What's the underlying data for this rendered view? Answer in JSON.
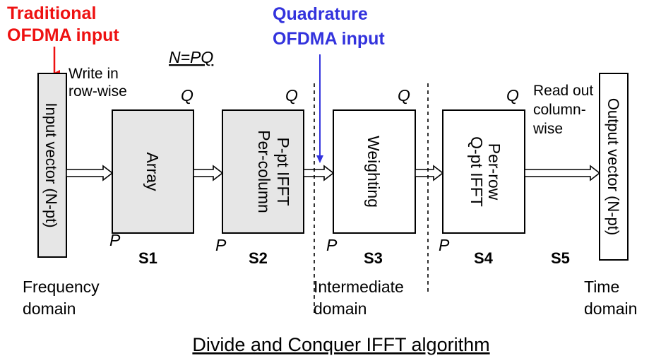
{
  "inputs": {
    "traditional": [
      "Traditional",
      "OFDMA input"
    ],
    "quadrature": [
      "Quadrature",
      "OFDMA input"
    ]
  },
  "equation": "N=PQ",
  "notes": {
    "write": [
      "Write in",
      "row-wise"
    ],
    "read": [
      "Read out",
      "column-",
      "wise"
    ]
  },
  "vectors": {
    "input": "Input vector (N-pt)",
    "output": "Output vector (N-pt)"
  },
  "blocks": [
    {
      "lines": [
        "Array"
      ],
      "q": "Q",
      "p": "P",
      "stage": "S1",
      "shaded": true
    },
    {
      "lines": [
        "Per-column",
        "P-pt IFFT"
      ],
      "q": "Q",
      "p": "P",
      "stage": "S2",
      "shaded": true
    },
    {
      "lines": [
        "Weighting"
      ],
      "q": "Q",
      "p": "P",
      "stage": "S3",
      "shaded": false
    },
    {
      "lines": [
        "Per-row",
        "Q-pt IFFT"
      ],
      "q": "Q",
      "p": "P",
      "stage": "S4",
      "shaded": false
    }
  ],
  "stage5": "S5",
  "domains": {
    "frequency": [
      "Frequency",
      "domain"
    ],
    "intermediate": [
      "Intermediate",
      "domain"
    ],
    "time": [
      "Time",
      "domain"
    ]
  },
  "caption": "Divide and Conquer IFFT algorithm",
  "colors": {
    "traditional": "#ee1111",
    "quadrature": "#3333dd",
    "shaded_fill": "#e6e6e6",
    "plain_fill": "#ffffff",
    "stroke": "#000000"
  }
}
